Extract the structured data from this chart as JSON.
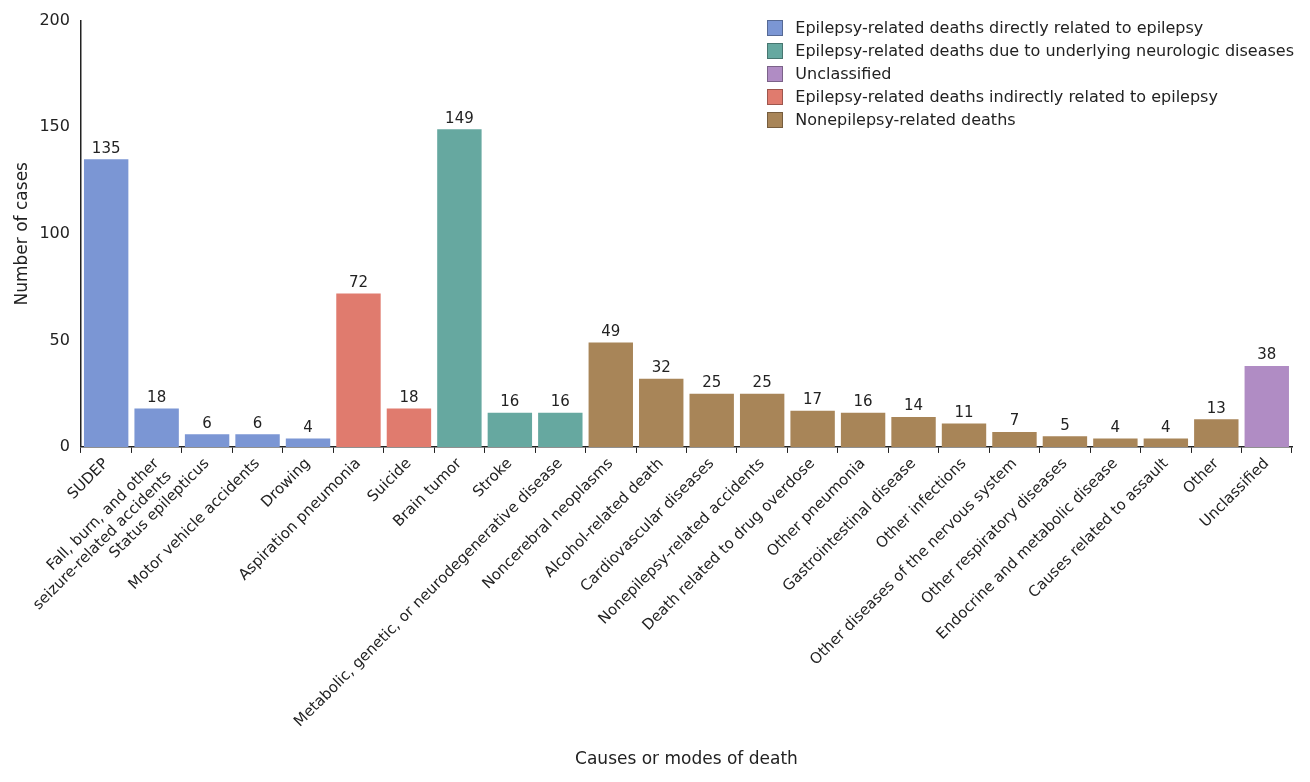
{
  "chart_data": {
    "type": "bar",
    "xlabel": "Causes or modes of death",
    "ylabel": "Number of cases",
    "categories": [
      "SUDEP",
      "Fall, burn, and other\nseizure-related accidents",
      "Status epilepticus",
      "Motor vehicle accidents",
      "Drowing",
      "Aspiration pneumonia",
      "Suicide",
      "Brain tumor",
      "Stroke",
      "Metabolic, genetic, or neurodegenerative disease",
      "Noncerebral neoplasms",
      "Alcohol-related death",
      "Cardiovascular diseases",
      "Nonepilepsy-related accidents",
      "Death related to drug overdose",
      "Other pneumonia",
      "Gastrointestinal disease",
      "Other infections",
      "Other diseases of the nervous system",
      "Other respiratory diseases",
      "Endocrine and metabolic disease",
      "Causes related to assault",
      "Other",
      "Unclassified"
    ],
    "series": [
      {
        "name": "Epilepsy-related deaths directly related to epilepsy",
        "color": "#7b96d4",
        "values": [
          135,
          18,
          6,
          6,
          4,
          null,
          null,
          null,
          null,
          null,
          null,
          null,
          null,
          null,
          null,
          null,
          null,
          null,
          null,
          null,
          null,
          null,
          null,
          null
        ]
      },
      {
        "name": "Epilepsy-related deaths due to underlying neurologic diseases",
        "color": "#66a8a0",
        "values": [
          null,
          null,
          null,
          null,
          null,
          null,
          null,
          149,
          16,
          16,
          null,
          null,
          null,
          null,
          null,
          null,
          null,
          null,
          null,
          null,
          null,
          null,
          null,
          null
        ]
      },
      {
        "name": "Unclassified",
        "color": "#b08cc4",
        "values": [
          null,
          null,
          null,
          null,
          null,
          null,
          null,
          null,
          null,
          null,
          null,
          null,
          null,
          null,
          null,
          null,
          null,
          null,
          null,
          null,
          null,
          null,
          null,
          38
        ]
      },
      {
        "name": "Epilepsy-related deaths indirectly related to epilepsy",
        "color": "#e07b6e",
        "values": [
          null,
          null,
          null,
          null,
          null,
          72,
          18,
          null,
          null,
          null,
          null,
          null,
          null,
          null,
          null,
          null,
          null,
          null,
          null,
          null,
          null,
          null,
          null,
          null
        ]
      },
      {
        "name": "Nonepilepsy-related deaths",
        "color": "#a88558",
        "values": [
          null,
          null,
          null,
          null,
          null,
          null,
          null,
          null,
          null,
          null,
          49,
          32,
          25,
          25,
          17,
          16,
          14,
          11,
          7,
          5,
          4,
          4,
          13,
          null
        ]
      }
    ],
    "ylim": [
      0,
      200
    ],
    "yticks": [
      0,
      50,
      100,
      150,
      200
    ],
    "grid": false,
    "legend": "top right",
    "data_labels": true
  }
}
